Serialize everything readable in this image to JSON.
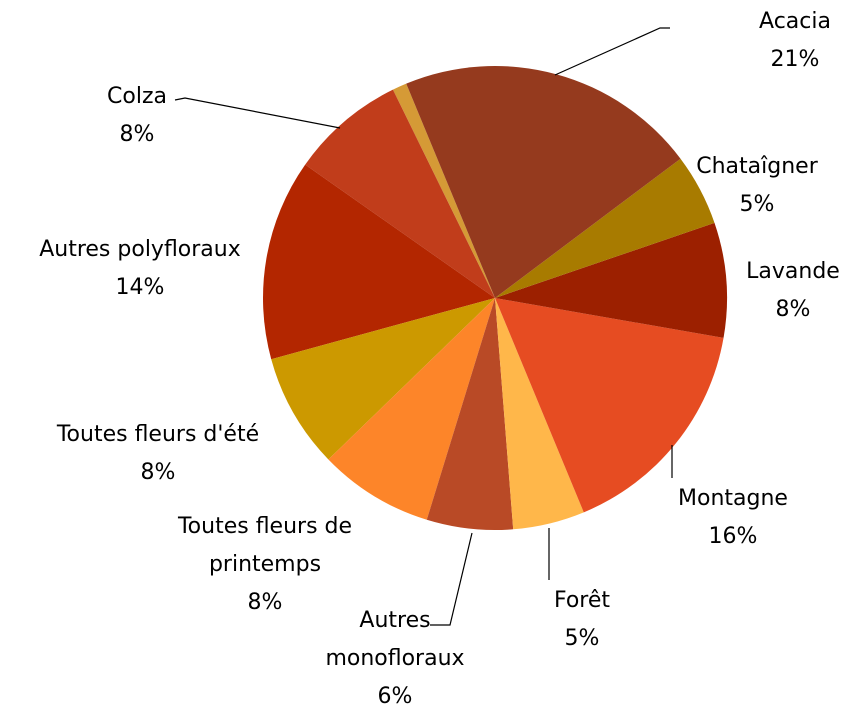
{
  "chart_data": {
    "type": "pie",
    "categories": [
      "Acacia",
      "Chataîgner",
      "Lavande",
      "Montagne",
      "Forêt",
      "Autres monofloraux",
      "Toutes fleurs de printemps",
      "Toutes fleurs d'été",
      "Autres polyfloraux",
      "Colza",
      null
    ],
    "values": [
      21,
      5,
      8,
      16,
      5,
      6,
      8,
      8,
      14,
      8,
      1
    ],
    "value_labels": [
      "21%",
      "5%",
      "8%",
      "16%",
      "5%",
      "6%",
      "8%",
      "8%",
      "14%",
      "8%",
      null
    ],
    "colors": [
      "#953a1e",
      "#a87b00",
      "#9c2000",
      "#e64c22",
      "#ffb74a",
      "#b94a26",
      "#fd8529",
      "#cc9900",
      "#b32600",
      "#c13d1b",
      "#d59a36"
    ]
  }
}
